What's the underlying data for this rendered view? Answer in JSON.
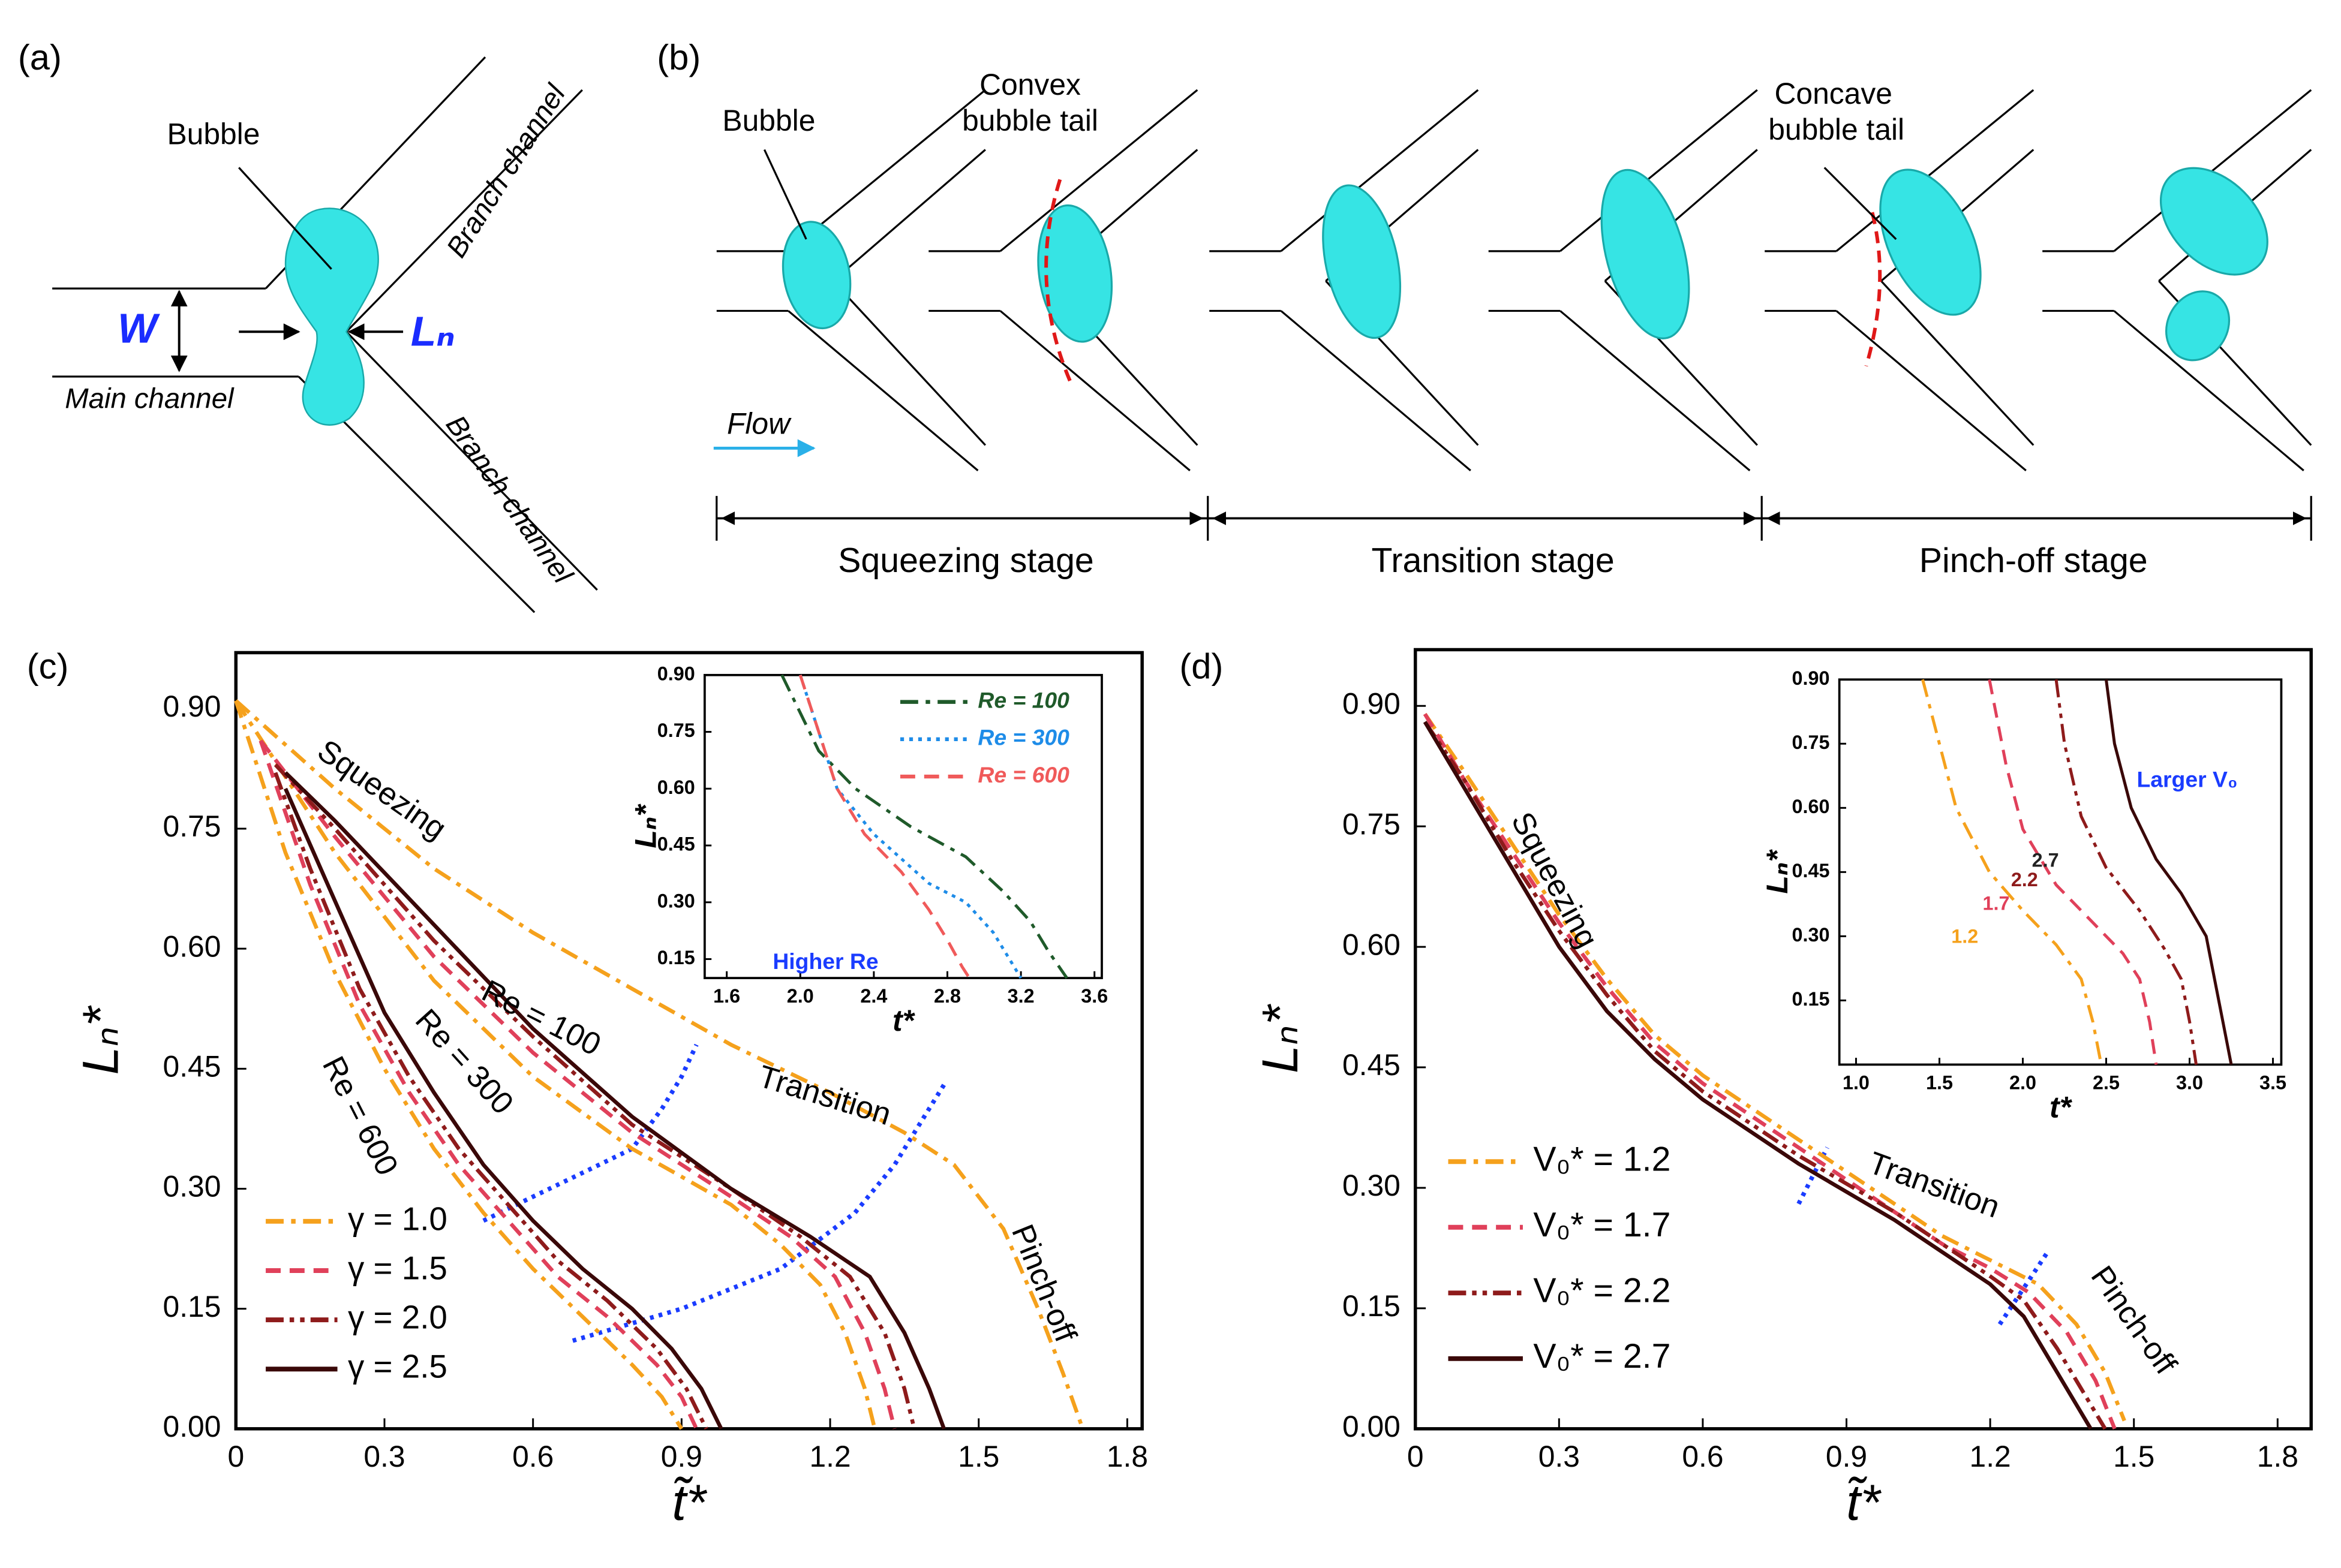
{
  "panel_a": {
    "label": "(a)",
    "bubble": "Bubble",
    "branch_top": "Branch channel",
    "branch_bottom": "Branch channel",
    "main": "Main channel",
    "width": "W",
    "neck": "Lₙ"
  },
  "panel_b": {
    "label": "(b)",
    "bubble": "Bubble",
    "convex": [
      "Convex",
      "bubble tail"
    ],
    "concave": [
      "Concave",
      "bubble tail"
    ],
    "flow": "Flow",
    "stages": [
      "Squeezing stage",
      "Transition stage",
      "Pinch-off stage"
    ]
  },
  "chart_data": [
    {
      "type": "line",
      "panel_label": "(c)",
      "xlabel": "t̃*",
      "ylabel": "Lₙ*",
      "xlim": [
        0,
        1.83
      ],
      "ylim": [
        0,
        0.97
      ],
      "xticks": [
        0,
        0.3,
        0.6,
        0.9,
        1.2,
        1.5,
        1.8
      ],
      "yticks": [
        {
          "value": 0,
          "label": "0.00"
        },
        0.15,
        {
          "value": 0.3,
          "label": "0.30"
        },
        0.45,
        {
          "value": 0.6,
          "label": "0.60"
        },
        0.75,
        {
          "value": 0.9,
          "label": "0.90"
        }
      ],
      "legend": "lower left",
      "series": [
        {
          "name": "γ = 1.0",
          "color": "#f5a11c",
          "dash": "dashdot",
          "x": [
            0,
            0.2,
            0.4,
            0.6,
            0.8,
            1.0,
            1.1,
            1.18,
            1.23,
            1.27,
            1.29
          ],
          "values": [
            0.91,
            0.72,
            0.56,
            0.44,
            0.35,
            0.28,
            0.23,
            0.18,
            0.12,
            0.05,
            0
          ]
        },
        {
          "name": "γ = 1.5",
          "color": "#e0405a",
          "dash": "dash",
          "x": [
            0.05,
            0.2,
            0.4,
            0.6,
            0.8,
            1.0,
            1.12,
            1.21,
            1.27,
            1.31,
            1.33
          ],
          "values": [
            0.86,
            0.74,
            0.59,
            0.47,
            0.37,
            0.29,
            0.24,
            0.19,
            0.12,
            0.05,
            0
          ]
        },
        {
          "name": "γ = 2.0",
          "color": "#8e1b1b",
          "dash": "dashdotdot",
          "x": [
            0.08,
            0.2,
            0.4,
            0.6,
            0.8,
            1.0,
            1.14,
            1.24,
            1.31,
            1.35,
            1.37
          ],
          "values": [
            0.83,
            0.75,
            0.61,
            0.49,
            0.38,
            0.3,
            0.24,
            0.19,
            0.12,
            0.05,
            0
          ]
        },
        {
          "name": "γ = 2.5",
          "color": "#3a0808",
          "dash": "solid",
          "x": [
            0.1,
            0.2,
            0.4,
            0.6,
            0.8,
            1.0,
            1.16,
            1.28,
            1.35,
            1.4,
            1.43
          ],
          "values": [
            0.82,
            0.76,
            0.63,
            0.5,
            0.39,
            0.3,
            0.24,
            0.19,
            0.12,
            0.05,
            0
          ]
        },
        {
          "color": "#f5a11c",
          "dash": "dashdot",
          "x": [
            0,
            0.1,
            0.2,
            0.3,
            0.4,
            0.5,
            0.6,
            0.7,
            0.8,
            0.86,
            0.9
          ],
          "values": [
            0.91,
            0.72,
            0.57,
            0.45,
            0.35,
            0.27,
            0.2,
            0.14,
            0.08,
            0.04,
            0
          ]
        },
        {
          "color": "#e0405a",
          "dash": "dash",
          "x": [
            0.05,
            0.15,
            0.25,
            0.35,
            0.45,
            0.55,
            0.65,
            0.75,
            0.85,
            0.9,
            0.93
          ],
          "values": [
            0.86,
            0.68,
            0.53,
            0.42,
            0.33,
            0.26,
            0.19,
            0.14,
            0.08,
            0.04,
            0
          ]
        },
        {
          "color": "#8e1b1b",
          "dash": "dashdotdot",
          "x": [
            0.08,
            0.15,
            0.25,
            0.35,
            0.45,
            0.55,
            0.65,
            0.75,
            0.85,
            0.91,
            0.95
          ],
          "values": [
            0.82,
            0.7,
            0.55,
            0.44,
            0.35,
            0.28,
            0.21,
            0.16,
            0.1,
            0.05,
            0
          ]
        },
        {
          "color": "#3a0808",
          "dash": "solid",
          "x": [
            0.1,
            0.2,
            0.3,
            0.4,
            0.5,
            0.6,
            0.7,
            0.8,
            0.88,
            0.94,
            0.98
          ],
          "values": [
            0.8,
            0.66,
            0.52,
            0.42,
            0.33,
            0.26,
            0.2,
            0.15,
            0.1,
            0.05,
            0
          ]
        },
        {
          "color": "#f5a11c",
          "dash": "dashdot",
          "x": [
            0,
            0.2,
            0.4,
            0.6,
            0.8,
            1.0,
            1.2,
            1.35,
            1.45,
            1.55,
            1.62,
            1.67,
            1.71
          ],
          "values": [
            0.91,
            0.8,
            0.7,
            0.62,
            0.55,
            0.48,
            0.42,
            0.37,
            0.33,
            0.25,
            0.15,
            0.07,
            0
          ]
        }
      ],
      "guides": [
        {
          "color": "#1a3cff",
          "x": [
            0.5,
            0.6,
            0.7,
            0.8,
            0.86,
            0.9,
            0.93
          ],
          "values": [
            0.26,
            0.29,
            0.32,
            0.35,
            0.4,
            0.44,
            0.48
          ]
        },
        {
          "color": "#1a3cff",
          "x": [
            0.68,
            0.9,
            1.1,
            1.25,
            1.33,
            1.38,
            1.43
          ],
          "values": [
            0.11,
            0.15,
            0.2,
            0.27,
            0.33,
            0.38,
            0.43
          ]
        }
      ],
      "annotations": [
        {
          "text": "Squeezing"
        },
        {
          "text": "Re = 100"
        },
        {
          "text": "Re = 300"
        },
        {
          "text": "Re = 600"
        },
        {
          "text": "Transition"
        },
        {
          "text": "Pinch-off"
        }
      ]
    },
    {
      "type": "line",
      "xlabel": "t*",
      "ylabel": "Lₙ*",
      "xlim": [
        1.48,
        3.64
      ],
      "ylim": [
        0.1,
        0.9
      ],
      "xticks": [
        1.6,
        {
          "value": 2,
          "label": "2.0"
        },
        2.4,
        2.8,
        3.2,
        3.6
      ],
      "yticks": [
        0.15,
        {
          "value": 0.3,
          "label": "0.30"
        },
        0.45,
        {
          "value": 0.6,
          "label": "0.60"
        },
        0.75,
        {
          "value": 0.9,
          "label": "0.90"
        }
      ],
      "legend": "upper right",
      "series": [
        {
          "name": "Re = 100",
          "color": "#1f5a2a",
          "dash": "dashdot",
          "x": [
            1.9,
            2.1,
            2.3,
            2.6,
            2.9,
            3.1,
            3.25,
            3.35,
            3.45
          ],
          "values": [
            0.9,
            0.7,
            0.6,
            0.5,
            0.42,
            0.33,
            0.25,
            0.17,
            0.1
          ]
        },
        {
          "name": "Re = 300",
          "color": "#1e8ce8",
          "dash": "dot",
          "x": [
            2.0,
            2.1,
            2.2,
            2.4,
            2.7,
            2.9,
            3.05,
            3.15,
            3.2
          ],
          "values": [
            0.9,
            0.75,
            0.6,
            0.48,
            0.35,
            0.3,
            0.22,
            0.14,
            0.1
          ]
        },
        {
          "name": "Re = 600",
          "color": "#f05a5a",
          "dash": "dash",
          "x": [
            2.0,
            2.1,
            2.2,
            2.35,
            2.55,
            2.7,
            2.8,
            2.88,
            2.92
          ],
          "values": [
            0.9,
            0.75,
            0.6,
            0.48,
            0.38,
            0.28,
            0.2,
            0.13,
            0.1
          ]
        }
      ],
      "annotations": [
        {
          "text": "Higher Re",
          "color": "#1a3cff"
        }
      ]
    },
    {
      "type": "line",
      "panel_label": "(d)",
      "xlabel": "t̃*",
      "ylabel": "Lₙ*",
      "xlim": [
        0,
        1.87
      ],
      "ylim": [
        0,
        0.97
      ],
      "xticks": [
        0,
        0.3,
        0.6,
        0.9,
        1.2,
        1.5,
        1.8
      ],
      "yticks": [
        {
          "value": 0,
          "label": "0.00"
        },
        0.15,
        {
          "value": 0.3,
          "label": "0.30"
        },
        0.45,
        {
          "value": 0.6,
          "label": "0.60"
        },
        0.75,
        {
          "value": 0.9,
          "label": "0.90"
        }
      ],
      "legend": "lower left",
      "series": [
        {
          "name": "V₀* = 1.2",
          "color": "#f5a11c",
          "dash": "dashdot",
          "x": [
            0.02,
            0.1,
            0.2,
            0.3,
            0.4,
            0.5,
            0.6,
            0.8,
            1.0,
            1.1,
            1.2,
            1.3,
            1.38,
            1.44,
            1.48
          ],
          "values": [
            0.89,
            0.82,
            0.73,
            0.64,
            0.56,
            0.49,
            0.44,
            0.36,
            0.28,
            0.24,
            0.21,
            0.18,
            0.13,
            0.07,
            0.01
          ]
        },
        {
          "name": "V₀* = 1.7",
          "color": "#e0405a",
          "dash": "dash",
          "x": [
            0.02,
            0.1,
            0.2,
            0.3,
            0.4,
            0.5,
            0.6,
            0.8,
            1.0,
            1.1,
            1.2,
            1.28,
            1.36,
            1.42,
            1.46
          ],
          "values": [
            0.89,
            0.81,
            0.72,
            0.63,
            0.55,
            0.48,
            0.43,
            0.35,
            0.27,
            0.23,
            0.2,
            0.17,
            0.12,
            0.06,
            0
          ]
        },
        {
          "name": "V₀* = 2.2",
          "color": "#8e1b1b",
          "dash": "dashdotdot",
          "x": [
            0.02,
            0.1,
            0.2,
            0.3,
            0.4,
            0.5,
            0.6,
            0.8,
            1.0,
            1.1,
            1.2,
            1.27,
            1.34,
            1.4,
            1.44
          ],
          "values": [
            0.88,
            0.81,
            0.71,
            0.62,
            0.54,
            0.47,
            0.42,
            0.34,
            0.27,
            0.23,
            0.19,
            0.16,
            0.1,
            0.04,
            0
          ]
        },
        {
          "name": "V₀* = 2.7",
          "color": "#3a0808",
          "dash": "solid",
          "x": [
            0.02,
            0.1,
            0.2,
            0.3,
            0.4,
            0.5,
            0.6,
            0.8,
            1.0,
            1.1,
            1.2,
            1.27,
            1.33,
            1.38,
            1.41
          ],
          "values": [
            0.88,
            0.8,
            0.7,
            0.6,
            0.52,
            0.46,
            0.41,
            0.33,
            0.26,
            0.22,
            0.18,
            0.14,
            0.08,
            0.03,
            0
          ]
        }
      ],
      "guides": [
        {
          "color": "#1a3cff",
          "x": [
            0.8,
            0.86
          ],
          "values": [
            0.28,
            0.35
          ]
        },
        {
          "color": "#1a3cff",
          "x": [
            1.22,
            1.32
          ],
          "values": [
            0.13,
            0.22
          ]
        }
      ],
      "annotations": [
        {
          "text": "Squeezing"
        },
        {
          "text": "Transition"
        },
        {
          "text": "Pinch-off"
        }
      ]
    },
    {
      "type": "line",
      "xlabel": "t*",
      "ylabel": "Lₙ*",
      "xlim": [
        0.9,
        3.55
      ],
      "ylim": [
        0,
        0.9
      ],
      "xticks": [
        {
          "value": 1,
          "label": "1.0"
        },
        1.5,
        {
          "value": 2,
          "label": "2.0"
        },
        2.5,
        {
          "value": 3,
          "label": "3.0"
        },
        3.5
      ],
      "yticks": [
        0.15,
        {
          "value": 0.3,
          "label": "0.30"
        },
        0.45,
        {
          "value": 0.6,
          "label": "0.60"
        },
        0.75,
        {
          "value": 0.9,
          "label": "0.90"
        }
      ],
      "series": [
        {
          "color": "#f5a11c",
          "dash": "dashdot",
          "x": [
            1.4,
            1.6,
            1.8,
            2.0,
            2.2,
            2.35,
            2.42,
            2.47
          ],
          "values": [
            0.9,
            0.6,
            0.45,
            0.36,
            0.28,
            0.2,
            0.1,
            0
          ]
        },
        {
          "color": "#e0405a",
          "dash": "dash",
          "x": [
            1.8,
            1.9,
            2.0,
            2.2,
            2.4,
            2.6,
            2.7,
            2.76,
            2.8
          ],
          "values": [
            0.9,
            0.7,
            0.55,
            0.42,
            0.34,
            0.26,
            0.2,
            0.1,
            0
          ]
        },
        {
          "color": "#8e1b1b",
          "dash": "dashdotdot",
          "x": [
            2.2,
            2.25,
            2.35,
            2.5,
            2.7,
            2.85,
            2.95,
            3.0,
            3.04
          ],
          "values": [
            0.9,
            0.75,
            0.58,
            0.46,
            0.36,
            0.27,
            0.2,
            0.1,
            0
          ]
        },
        {
          "color": "#3a0808",
          "dash": "solid",
          "x": [
            2.5,
            2.55,
            2.65,
            2.8,
            2.95,
            3.1,
            3.15,
            3.2,
            3.25
          ],
          "values": [
            0.9,
            0.75,
            0.6,
            0.48,
            0.4,
            0.3,
            0.2,
            0.1,
            0
          ]
        }
      ],
      "annotations": [
        {
          "text": "1.2",
          "color": "#f5a11c"
        },
        {
          "text": "1.7",
          "color": "#e0405a"
        },
        {
          "text": "2.2",
          "color": "#8e1b1b"
        },
        {
          "text": "2.7",
          "color": "#222"
        },
        {
          "text": "Larger V₀",
          "color": "#1a3cff"
        }
      ]
    }
  ]
}
